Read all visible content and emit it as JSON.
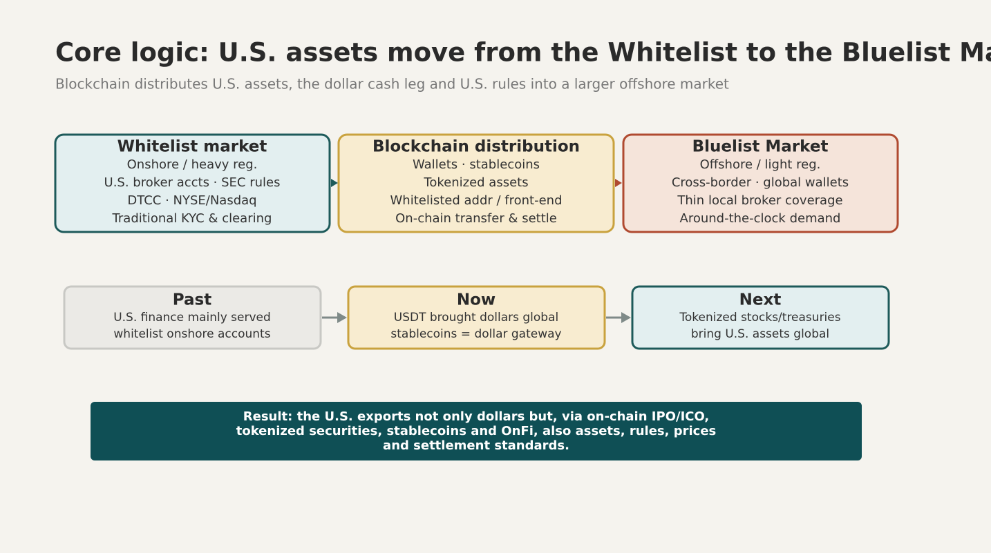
{
  "header": {
    "title": "Core logic: U.S. assets move from the Whitelist to the Bluelist Market",
    "subtitle": "Blockchain distributes U.S. assets, the dollar cash leg and U.S. rules into a larger offshore market"
  },
  "top_row": {
    "nodes": [
      {
        "title": "Whitelist market",
        "lines": [
          "Onshore / heavy reg.",
          "U.S. broker accts · SEC rules",
          "DTCC · NYSE/Nasdaq",
          "Traditional KYC & clearing"
        ]
      },
      {
        "title": "Blockchain distribution",
        "lines": [
          "Wallets · stablecoins",
          "Tokenized assets",
          "Whitelisted addr / front-end",
          "On-chain transfer & settle"
        ]
      },
      {
        "title": "Bluelist Market",
        "lines": [
          "Offshore / light reg.",
          "Cross-border · global wallets",
          "Thin local broker coverage",
          "Around-the-clock demand"
        ]
      }
    ]
  },
  "bottom_row": {
    "nodes": [
      {
        "title": "Past",
        "lines": [
          "U.S. finance mainly served",
          "whitelist onshore accounts"
        ]
      },
      {
        "title": "Now",
        "lines": [
          "USDT brought dollars global",
          "stablecoins = dollar gateway"
        ]
      },
      {
        "title": "Next",
        "lines": [
          "Tokenized stocks/treasuries",
          "bring U.S. assets global"
        ]
      }
    ]
  },
  "result": {
    "lines": [
      "Result: the U.S. exports not only dollars but, via on-chain IPO/ICO,",
      "tokenized securities, stablecoins and OnFi, also assets, rules, prices",
      "and settlement standards."
    ]
  }
}
